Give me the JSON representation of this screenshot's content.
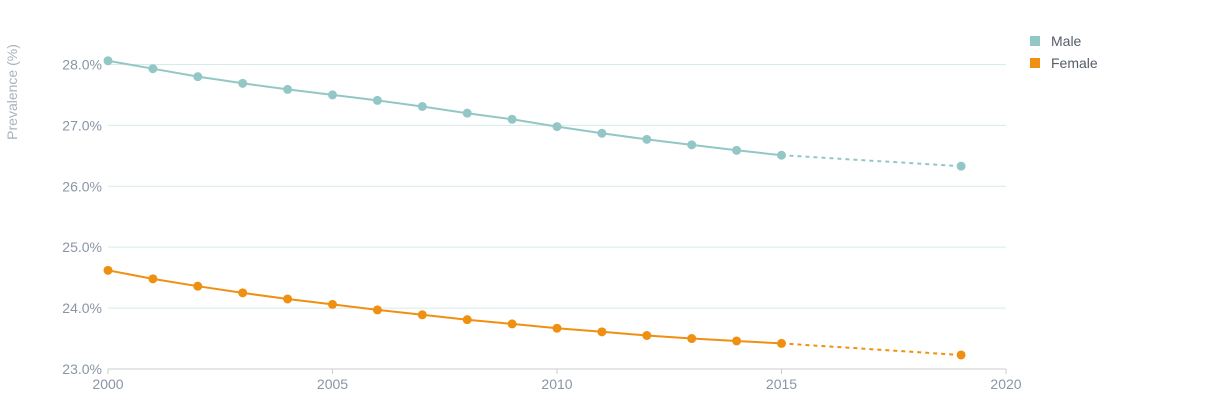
{
  "chart_data": {
    "type": "line",
    "title": "",
    "xlabel": "",
    "ylabel": "Prevalence (%)",
    "xlim": [
      2000,
      2020
    ],
    "ylim": [
      23.0,
      28.5
    ],
    "x_ticks": [
      2000,
      2005,
      2010,
      2015,
      2020
    ],
    "y_ticks": [
      23.0,
      24.0,
      25.0,
      26.0,
      27.0,
      28.0
    ],
    "y_tick_labels": [
      "23.0%",
      "24.0%",
      "25.0%",
      "26.0%",
      "27.0%",
      "28.0%"
    ],
    "grid": "horizontal",
    "legend_position": "top-right",
    "series": [
      {
        "name": "Male",
        "color": "#93c7c6",
        "x": [
          2000,
          2001,
          2002,
          2003,
          2004,
          2005,
          2006,
          2007,
          2008,
          2009,
          2010,
          2011,
          2012,
          2013,
          2014,
          2015,
          2019
        ],
        "values": [
          28.06,
          27.93,
          27.8,
          27.69,
          27.59,
          27.5,
          27.41,
          27.31,
          27.2,
          27.1,
          26.98,
          26.87,
          26.77,
          26.68,
          26.59,
          26.51,
          26.33
        ],
        "dashed_from_x": 2015
      },
      {
        "name": "Female",
        "color": "#ef9012",
        "x": [
          2000,
          2001,
          2002,
          2003,
          2004,
          2005,
          2006,
          2007,
          2008,
          2009,
          2010,
          2011,
          2012,
          2013,
          2014,
          2015,
          2019
        ],
        "values": [
          24.62,
          24.48,
          24.36,
          24.25,
          24.15,
          24.06,
          23.97,
          23.89,
          23.81,
          23.74,
          23.67,
          23.61,
          23.55,
          23.5,
          23.46,
          23.42,
          23.23
        ],
        "dashed_from_x": 2015
      }
    ]
  }
}
